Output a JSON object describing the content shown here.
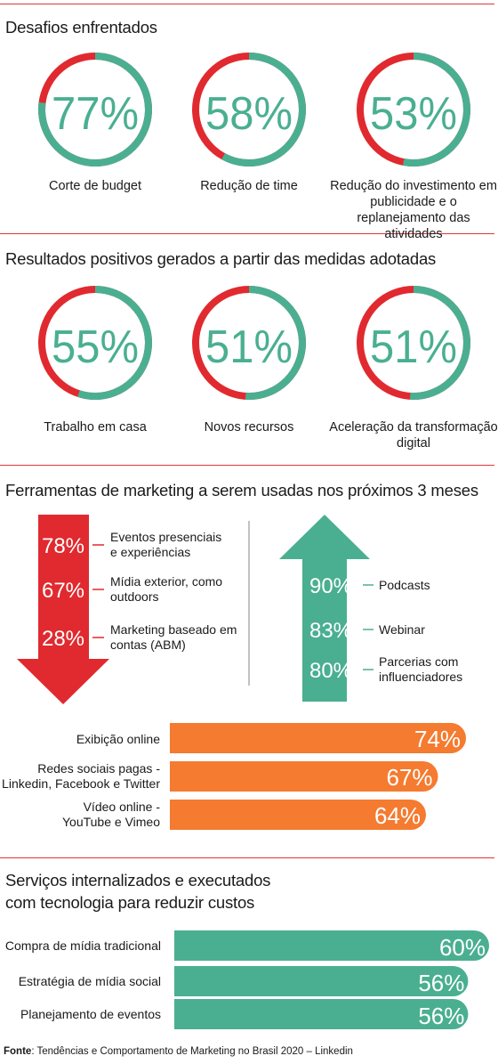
{
  "colors": {
    "green": "#4aaf91",
    "red": "#e02a2f",
    "orange": "#f47b30",
    "rule": "#e0353a"
  },
  "sections": {
    "challenges_title": "Desafios enfrentados",
    "results_title": "Resultados positivos gerados a partir das medidas adotadas",
    "tools_title": "Ferramentas de marketing a serem usadas nos próximos 3 meses",
    "services_title_1": "Serviços internalizados e executados",
    "services_title_2": "com tecnologia para reduzir custos"
  },
  "chart_data": [
    {
      "type": "pie",
      "title": "Desafios enfrentados",
      "items": [
        {
          "label": "Corte de budget",
          "value": 77,
          "text": "77%"
        },
        {
          "label": "Redução de time",
          "value": 58,
          "text": "58%"
        },
        {
          "label": "Redução do investimento em publicidade e o replanejamento das atividades",
          "value": 53,
          "text": "53%"
        }
      ]
    },
    {
      "type": "pie",
      "title": "Resultados positivos gerados a partir das medidas adotadas",
      "items": [
        {
          "label": "Trabalho em casa",
          "value": 55,
          "text": "55%"
        },
        {
          "label": "Novos recursos",
          "value": 51,
          "text": "51%"
        },
        {
          "label": "Aceleração da transformação digital",
          "value": 51,
          "text": "51%"
        }
      ]
    },
    {
      "type": "bar",
      "title": "Ferramentas de marketing a serem usadas nos próximos 3 meses",
      "decreasing": [
        {
          "label": "Eventos presenciais e experiências",
          "value": 78,
          "text": "78%"
        },
        {
          "label": "Mídia exterior, como outdoors",
          "value": 67,
          "text": "67%"
        },
        {
          "label": "Marketing baseado em contas (ABM)",
          "value": 28,
          "text": "28%"
        }
      ],
      "increasing": [
        {
          "label": "Podcasts",
          "value": 90,
          "text": "90%"
        },
        {
          "label": "Webinar",
          "value": 83,
          "text": "83%"
        },
        {
          "label": "Parcerias com influenciadores",
          "value": 80,
          "text": "80%"
        }
      ],
      "bars": [
        {
          "label": "Exibição online",
          "value": 74,
          "text": "74%"
        },
        {
          "label": "Redes sociais pagas - Linkedin, Facebook e Twitter",
          "value": 67,
          "text": "67%"
        },
        {
          "label": "Vídeo online - YouTube e Vimeo",
          "value": 64,
          "text": "64%"
        }
      ]
    },
    {
      "type": "bar",
      "title": "Serviços internalizados e executados com tecnologia para reduzir custos",
      "bars": [
        {
          "label": "Compra de mídia tradicional",
          "value": 60,
          "text": "60%"
        },
        {
          "label": "Estratégia de mídia social",
          "value": 56,
          "text": "56%"
        },
        {
          "label": "Planejamento de eventos",
          "value": 56,
          "text": "56%"
        }
      ]
    }
  ],
  "source": {
    "prefix": "Fonte",
    "text": ": Tendências e Comportamento de Marketing no Brasil 2020 – Linkedin"
  }
}
